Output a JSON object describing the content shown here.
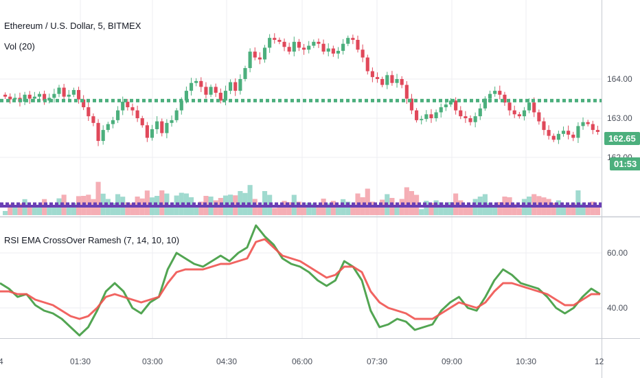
{
  "header": {
    "symbol_title": "Ethereum / U.S. Dollar, 5, BITMEX",
    "volume_label": "Vol (20)"
  },
  "price_badge": {
    "value": "162.65",
    "color": "#4caf7d"
  },
  "countdown_badge": {
    "value": "01:53",
    "color": "#4caf7d"
  },
  "chart_data": [
    {
      "type": "candlestick",
      "title": "Ethereum / U.S. Dollar, 5, BITMEX",
      "y_ticks": [
        "162.00",
        "163.00",
        "164.00"
      ],
      "ylim": [
        161.5,
        165.3
      ],
      "x_ticks": [
        "01:30",
        "03:00",
        "04:30",
        "06:00",
        "07:30",
        "09:00",
        "10:30"
      ],
      "close": [
        163.55,
        163.48,
        163.52,
        163.42,
        163.6,
        163.5,
        163.55,
        163.62,
        163.45,
        163.52,
        163.62,
        163.78,
        163.55,
        163.6,
        163.72,
        163.48,
        163.28,
        163.05,
        162.88,
        162.42,
        162.7,
        162.85,
        162.95,
        163.2,
        163.42,
        163.28,
        163.2,
        163.0,
        162.82,
        162.5,
        162.72,
        162.92,
        162.62,
        162.88,
        162.95,
        163.2,
        163.45,
        163.7,
        163.9,
        163.95,
        163.8,
        163.6,
        163.8,
        163.65,
        163.45,
        163.7,
        163.92,
        163.7,
        164.0,
        164.28,
        164.7,
        164.55,
        164.5,
        164.8,
        165.05,
        165.0,
        164.95,
        164.82,
        164.7,
        164.95,
        164.8,
        164.75,
        164.85,
        164.95,
        164.9,
        164.7,
        164.78,
        164.65,
        164.72,
        164.9,
        165.05,
        165.0,
        164.75,
        164.55,
        164.2,
        164.05,
        164.0,
        163.85,
        164.1,
        163.9,
        164.0,
        163.85,
        163.5,
        163.2,
        162.95,
        162.98,
        163.1,
        163.0,
        163.15,
        163.28,
        163.35,
        163.45,
        163.2,
        163.05,
        163.0,
        162.9,
        163.05,
        163.25,
        163.5,
        163.62,
        163.7,
        163.6,
        163.4,
        163.2,
        163.1,
        163.05,
        163.2,
        163.4,
        163.15,
        162.92,
        162.7,
        162.55,
        162.45,
        162.6,
        162.68,
        162.58,
        162.5,
        162.8,
        162.9,
        162.85,
        162.7,
        162.65
      ],
      "series": [
        {
          "name": "",
          "color": "#4caf7d",
          "style": "dotted",
          "value": 163.45
        }
      ]
    },
    {
      "type": "area",
      "title": "Vol (20)",
      "note": "volume histogram with moving average (overlaid on lower part of price pane)"
    },
    {
      "type": "line",
      "title": "RSI EMA CrossOver Ramesh (7, 14, 10, 10)",
      "y_ticks": [
        "40.00",
        "60.00"
      ],
      "ylim": [
        25,
        75
      ],
      "x_ticks": [
        "01:30",
        "03:00",
        "04:30",
        "06:00",
        "07:30",
        "09:00",
        "10:30"
      ],
      "series": [
        {
          "name": "",
          "color": "#3f9b3f",
          "values": [
            49,
            47,
            44,
            45,
            41,
            39,
            38,
            36,
            33,
            30,
            33,
            39,
            46,
            49,
            46,
            40,
            38,
            42,
            44,
            54,
            60,
            58,
            56,
            55,
            57,
            59,
            57,
            60,
            62,
            70,
            66,
            63,
            58,
            56,
            55,
            53,
            50,
            48,
            50,
            57,
            55,
            50,
            39,
            33,
            34,
            36,
            35,
            32,
            33,
            34,
            39,
            42,
            44,
            40,
            39,
            44,
            50,
            54,
            52,
            49,
            48,
            47,
            44,
            40,
            38,
            40,
            44,
            47,
            45
          ]
        },
        {
          "name": "",
          "color": "#ef5350",
          "values": [
            46,
            46,
            45,
            45,
            43,
            42,
            41,
            39,
            37,
            36,
            37,
            40,
            44,
            45,
            44,
            43,
            42,
            43,
            44,
            49,
            53,
            54,
            54,
            54,
            55,
            56,
            56,
            57,
            58,
            64,
            65,
            62,
            59,
            58,
            57,
            55,
            53,
            51,
            52,
            55,
            55,
            53,
            46,
            42,
            40,
            39,
            38,
            36,
            36,
            36,
            38,
            40,
            42,
            41,
            40,
            42,
            46,
            49,
            49,
            48,
            47,
            46,
            45,
            43,
            41,
            41,
            43,
            45,
            45
          ]
        }
      ]
    }
  ],
  "rsi_title": "RSI EMA CrossOver Ramesh (7, 14, 10, 10)",
  "colors": {
    "up": "#4caf7d",
    "down": "#e0485a",
    "grid": "#eceef2",
    "axis_text": "#4a4f5a",
    "volume_up": "#8fd3c7",
    "volume_down": "#f3a0a8",
    "volume_ma": "#6a3fb5"
  },
  "edge_labels": {
    "left_time": "4",
    "right_time": "12"
  }
}
